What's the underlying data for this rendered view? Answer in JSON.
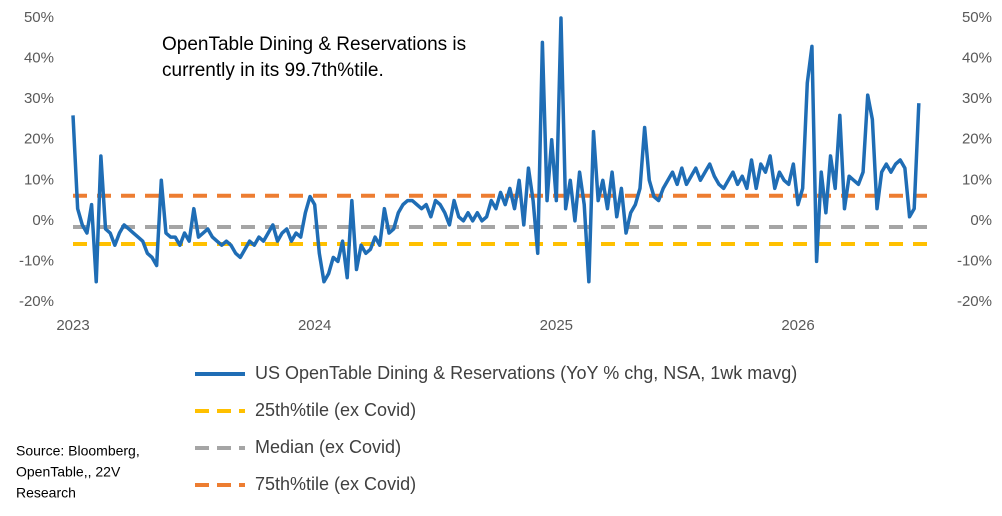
{
  "chart_data": {
    "type": "line",
    "annotation": [
      "OpenTable Dining & Reservations is",
      "currently in its 99.7th%tile."
    ],
    "source": [
      "Source: Bloomberg,",
      "OpenTable,, 22V",
      "Research"
    ],
    "categories": [
      "2023",
      null,
      null,
      null,
      null,
      null,
      null,
      null,
      null,
      null,
      null,
      null,
      null,
      null,
      null,
      null,
      null,
      null,
      null,
      null,
      null,
      null,
      null,
      null,
      null,
      null,
      null,
      null,
      null,
      null,
      null,
      null,
      null,
      null,
      null,
      null,
      null,
      null,
      null,
      null,
      null,
      null,
      null,
      null,
      null,
      null,
      null,
      null,
      null,
      null,
      null,
      null,
      "2024",
      null,
      null,
      null,
      null,
      null,
      null,
      null,
      null,
      null,
      null,
      null,
      null,
      null,
      null,
      null,
      null,
      null,
      null,
      null,
      null,
      null,
      null,
      null,
      null,
      null,
      null,
      null,
      null,
      null,
      null,
      null,
      null,
      null,
      null,
      null,
      null,
      null,
      null,
      null,
      null,
      null,
      null,
      null,
      null,
      null,
      null,
      null,
      null,
      null,
      null,
      null,
      "2025",
      null,
      null,
      null,
      null,
      null,
      null,
      null,
      null,
      null,
      null,
      null,
      null,
      null,
      null,
      null,
      null,
      null,
      null,
      null,
      null,
      null,
      null,
      null,
      null,
      null,
      null,
      null,
      null,
      null,
      null,
      null,
      null,
      null,
      null,
      null,
      null,
      null,
      null,
      null,
      null,
      null,
      null,
      null,
      null,
      null,
      null,
      null,
      null,
      null,
      null,
      null,
      "2026",
      null,
      null,
      null,
      null,
      null,
      null,
      null,
      null,
      null,
      null,
      null,
      null,
      null,
      null,
      null,
      null,
      null,
      null,
      null,
      null,
      null,
      null,
      null,
      null,
      null,
      null
    ],
    "series": [
      {
        "name": "US OpenTable Dining & Reservations (YoY % chg, NSA, 1wk mavg)",
        "color": "#1f6db5",
        "values": [
          26,
          3,
          -1,
          -3,
          4,
          -15,
          16,
          -2,
          -3,
          -6,
          -3,
          -1,
          -2,
          -3,
          -4,
          -5,
          -8,
          -9,
          -11,
          10,
          -3,
          -4,
          -4,
          -6,
          -3,
          -5,
          3,
          -4,
          -3,
          -2,
          -4,
          -5,
          -6,
          -5,
          -6,
          -8,
          -9,
          -7,
          -5,
          -6,
          -4,
          -5,
          -3,
          -1,
          -5,
          -3,
          -2,
          -5,
          -3,
          -4,
          2,
          6,
          4,
          -8,
          -15,
          -13,
          -9,
          -10,
          -5,
          -14,
          5,
          -12,
          -6,
          -8,
          -7,
          -4,
          -6,
          3,
          -3,
          -2,
          2,
          4,
          5,
          5,
          4,
          3,
          4,
          1,
          5,
          4,
          2,
          -1,
          5,
          1,
          0,
          2,
          0,
          2,
          0,
          1,
          5,
          3,
          7,
          4,
          8,
          3,
          10,
          -1,
          13,
          5,
          -8,
          44,
          5,
          20,
          5,
          50,
          3,
          10,
          0,
          12,
          4,
          -15,
          22,
          5,
          10,
          3,
          12,
          1,
          8,
          -3,
          2,
          4,
          8,
          23,
          10,
          6,
          5,
          8,
          10,
          12,
          9,
          13,
          9,
          11,
          13,
          10,
          12,
          14,
          11,
          9,
          8,
          10,
          12,
          9,
          11,
          8,
          15,
          8,
          14,
          12,
          16,
          8,
          12,
          10,
          9,
          14,
          4,
          8,
          34,
          43,
          -10,
          12,
          2,
          16,
          8,
          26,
          3,
          11,
          10,
          9,
          12,
          31,
          25,
          3,
          12,
          14,
          12,
          14,
          15,
          13,
          1,
          3,
          29
        ]
      }
    ],
    "reference_lines": [
      {
        "name": "25th%tile (ex Covid)",
        "color": "#ffc000",
        "value": -5.7
      },
      {
        "name": "Median (ex Covid)",
        "color": "#a5a5a5",
        "value": -1.5
      },
      {
        "name": "75th%tile (ex Covid)",
        "color": "#ed7d31",
        "value": 6.2
      }
    ],
    "ylim": [
      -20,
      50
    ],
    "yticks": [
      {
        "value": -20,
        "label": "-20%"
      },
      {
        "value": -10,
        "label": "-10%"
      },
      {
        "value": 0,
        "label": "0%"
      },
      {
        "value": 10,
        "label": "10%"
      },
      {
        "value": 20,
        "label": "20%"
      },
      {
        "value": 30,
        "label": "30%"
      },
      {
        "value": 40,
        "label": "40%"
      },
      {
        "value": 50,
        "label": "50%"
      }
    ],
    "y2lim": [
      -20,
      50
    ],
    "y2ticks": [
      {
        "value": -20,
        "label": "-20%"
      },
      {
        "value": -10,
        "label": "-10%"
      },
      {
        "value": 0,
        "label": "0%"
      },
      {
        "value": 10,
        "label": "10%"
      },
      {
        "value": 20,
        "label": "20%"
      },
      {
        "value": 30,
        "label": "30%"
      },
      {
        "value": 40,
        "label": "40%"
      },
      {
        "value": 50,
        "label": "50%"
      }
    ]
  }
}
